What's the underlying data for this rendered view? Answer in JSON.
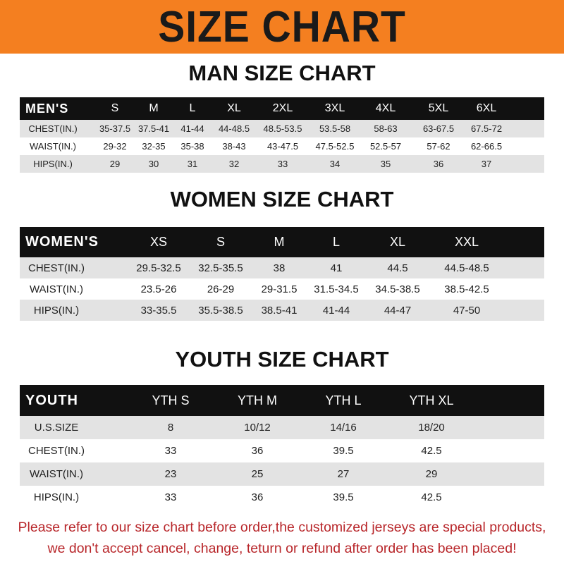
{
  "banner": "SIZE CHART",
  "men": {
    "title": "MAN SIZE CHART",
    "header": [
      "MEN'S",
      "S",
      "M",
      "L",
      "XL",
      "2XL",
      "3XL",
      "4XL",
      "5XL",
      "6XL"
    ],
    "rows": [
      [
        "CHEST(IN.)",
        "35-37.5",
        "37.5-41",
        "41-44",
        "44-48.5",
        "48.5-53.5",
        "53.5-58",
        "58-63",
        "63-67.5",
        "67.5-72"
      ],
      [
        "WAIST(IN.)",
        "29-32",
        "32-35",
        "35-38",
        "38-43",
        "43-47.5",
        "47.5-52.5",
        "52.5-57",
        "57-62",
        "62-66.5"
      ],
      [
        "HIPS(IN.)",
        "29",
        "30",
        "31",
        "32",
        "33",
        "34",
        "35",
        "36",
        "37"
      ]
    ]
  },
  "women": {
    "title": "WOMEN SIZE CHART",
    "header": [
      "WOMEN'S",
      "XS",
      "S",
      "M",
      "L",
      "XL",
      "XXL"
    ],
    "rows": [
      [
        "CHEST(IN.)",
        "29.5-32.5",
        "32.5-35.5",
        "38",
        "41",
        "44.5",
        "44.5-48.5"
      ],
      [
        "WAIST(IN.)",
        "23.5-26",
        "26-29",
        "29-31.5",
        "31.5-34.5",
        "34.5-38.5",
        "38.5-42.5"
      ],
      [
        "HIPS(IN.)",
        "33-35.5",
        "35.5-38.5",
        "38.5-41",
        "41-44",
        "44-47",
        "47-50"
      ]
    ]
  },
  "youth": {
    "title": "YOUTH SIZE CHART",
    "header": [
      "YOUTH",
      "YTH S",
      "YTH M",
      "YTH L",
      "YTH XL"
    ],
    "rows": [
      [
        "U.S.SIZE",
        "8",
        "10/12",
        "14/16",
        "18/20"
      ],
      [
        "CHEST(IN.)",
        "33",
        "36",
        "39.5",
        "42.5"
      ],
      [
        "WAIST(IN.)",
        "23",
        "25",
        "27",
        "29"
      ],
      [
        "HIPS(IN.)",
        "33",
        "36",
        "39.5",
        "42.5"
      ]
    ]
  },
  "notice": {
    "line1": "Please refer to our size chart before order,the customized jerseys are special products,",
    "line2": "we don't accept cancel, change, teturn or refund after order has been placed!"
  },
  "colors": {
    "banner": "#f47f20",
    "header": "#111111",
    "stripe": "#e3e3e3",
    "notice": "#b8262a"
  }
}
